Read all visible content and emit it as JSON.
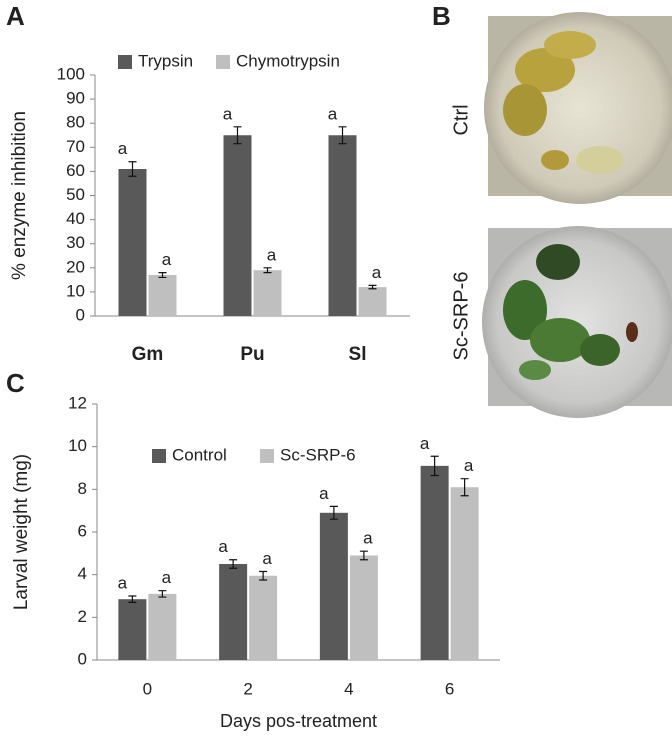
{
  "panels": {
    "labels": [
      "A",
      "B",
      "C"
    ],
    "photos": [
      "Ctrl",
      "Sc-SRP-6"
    ]
  },
  "chart_data": [
    {
      "type": "bar",
      "ylabel": "% enzyme inhibition",
      "categories": [
        "Gm",
        "Pu",
        "Sl"
      ],
      "series": [
        {
          "name": "Trypsin",
          "color": "#595959",
          "values": [
            61,
            75,
            75
          ],
          "errors": [
            3,
            3.5,
            3.5
          ],
          "labels": [
            "a",
            "a",
            "a"
          ]
        },
        {
          "name": "Chymotrypsin",
          "color": "#bfbfbf",
          "values": [
            17,
            19,
            12
          ],
          "errors": [
            1,
            1,
            0.7
          ],
          "labels": [
            "a",
            "a",
            "a"
          ]
        }
      ],
      "ylim": [
        0,
        100
      ],
      "yticks": [
        0,
        10,
        20,
        30,
        40,
        50,
        60,
        70,
        80,
        90,
        100
      ],
      "grid": false,
      "legend": "top"
    },
    {
      "type": "bar",
      "xlabel": "Days pos-treatment",
      "ylabel": "Larval weight (mg)",
      "categories": [
        "0",
        "2",
        "4",
        "6"
      ],
      "series": [
        {
          "name": "Control",
          "color": "#595959",
          "values": [
            2.85,
            4.5,
            6.9,
            9.1
          ],
          "errors": [
            0.15,
            0.2,
            0.3,
            0.45
          ],
          "labels": [
            "a",
            "a",
            "a",
            "a"
          ]
        },
        {
          "name": "Sc-SRP-6",
          "color": "#bfbfbf",
          "values": [
            3.1,
            3.95,
            4.9,
            8.1
          ],
          "errors": [
            0.15,
            0.2,
            0.2,
            0.4
          ],
          "labels": [
            "a",
            "a",
            "a",
            "a"
          ]
        }
      ],
      "ylim": [
        0,
        12
      ],
      "yticks": [
        0,
        2,
        4,
        6,
        8,
        10,
        12
      ],
      "grid": false,
      "legend": "top"
    }
  ]
}
